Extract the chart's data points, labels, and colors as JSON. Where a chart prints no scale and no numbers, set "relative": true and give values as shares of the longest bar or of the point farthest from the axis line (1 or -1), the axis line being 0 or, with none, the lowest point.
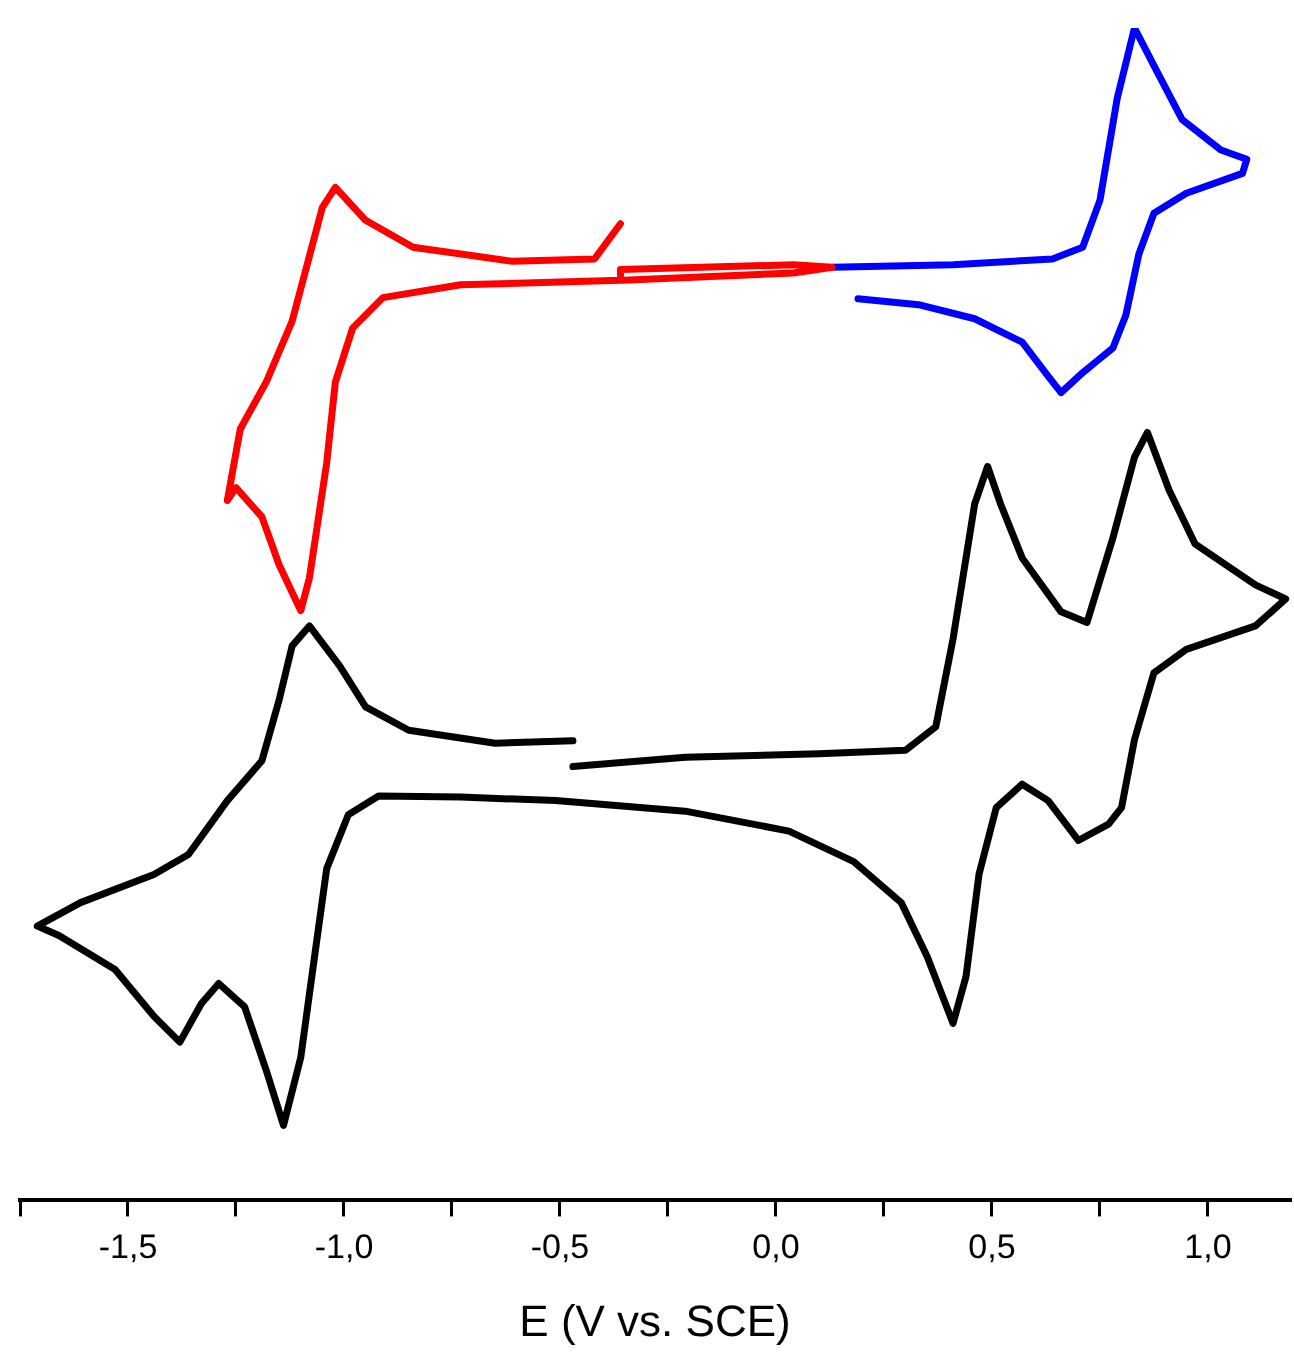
{
  "chart_data": {
    "type": "line",
    "xlabel": "E (V vs. SCE)",
    "relative": true,
    "legend": false,
    "grid": false,
    "marker": "none",
    "line_style": "solid",
    "xlim": [
      -1.75,
      1.19
    ],
    "xticks": [
      {
        "value": -1.75,
        "label": null
      },
      {
        "value": -1.5,
        "label": "-1,5"
      },
      {
        "value": -1.25,
        "label": null
      },
      {
        "value": -1.0,
        "label": "-1,0"
      },
      {
        "value": -0.75,
        "label": null
      },
      {
        "value": -0.5,
        "label": "-0,5"
      },
      {
        "value": -0.25,
        "label": null
      },
      {
        "value": 0,
        "label": "0,0"
      },
      {
        "value": 0.25,
        "label": null
      },
      {
        "value": 0.5,
        "label": "0,5"
      },
      {
        "value": 0.75,
        "label": null
      },
      {
        "value": 1.0,
        "label": "1,0"
      }
    ],
    "series": [
      {
        "color": "#ff0000",
        "x": [
          -0.36,
          -0.42,
          -0.61,
          -0.84,
          -0.95,
          -1.02,
          -1.05,
          -1.12,
          -1.18,
          -1.24,
          -1.27,
          -1.25,
          -1.19,
          -1.15,
          -1.1,
          -1.08,
          -1.04,
          -1.02,
          -0.98,
          -0.91,
          -0.73,
          -0.34,
          0.04,
          0.13,
          0.04,
          -0.36,
          -0.36
        ],
        "values": [
          0.833,
          0.803,
          0.801,
          0.813,
          0.836,
          0.864,
          0.847,
          0.75,
          0.698,
          0.658,
          0.597,
          0.608,
          0.583,
          0.542,
          0.503,
          0.531,
          0.629,
          0.698,
          0.744,
          0.77,
          0.781,
          0.785,
          0.791,
          0.796,
          0.798,
          0.794,
          0.789
        ]
      },
      {
        "color": "#0000ff",
        "x": [
          0.13,
          0.41,
          0.64,
          0.71,
          0.75,
          0.79,
          0.83,
          0.875,
          0.94,
          1.03,
          1.09,
          1.08,
          0.95,
          0.875,
          0.84,
          0.81,
          0.78,
          0.74,
          0.71,
          0.66,
          0.63,
          0.57,
          0.46,
          0.33,
          0.19
        ],
        "values": [
          0.796,
          0.798,
          0.803,
          0.813,
          0.853,
          0.94,
          1.0,
          0.968,
          0.922,
          0.896,
          0.888,
          0.876,
          0.859,
          0.842,
          0.807,
          0.755,
          0.727,
          0.715,
          0.706,
          0.689,
          0.703,
          0.732,
          0.752,
          0.764,
          0.769
        ]
      },
      {
        "color": "#000000",
        "x": [
          -0.47,
          -0.21,
          0.1,
          0.3,
          0.37,
          0.41,
          0.46,
          0.49,
          0.52,
          0.57,
          0.66,
          0.72,
          0.78,
          0.83,
          0.86,
          0.91,
          0.97,
          1.11,
          1.18,
          1.11,
          0.95,
          0.875,
          0.83,
          0.8,
          0.77,
          0.7,
          0.63,
          0.57,
          0.51,
          0.47,
          0.44,
          0.41,
          0.35,
          0.29,
          0.18,
          0.03,
          -0.21,
          -0.51,
          -0.73,
          -0.92,
          -0.99,
          -1.04,
          -1.07,
          -1.1,
          -1.14,
          -1.18,
          -1.23,
          -1.29,
          -1.33,
          -1.38,
          -1.44,
          -1.53,
          -1.66,
          -1.71,
          -1.61,
          -1.44,
          -1.36,
          -1.27,
          -1.19,
          -1.15,
          -1.12,
          -1.08,
          -1.01,
          -0.95,
          -0.85,
          -0.65,
          -0.47
        ],
        "values": [
          0.37,
          0.378,
          0.381,
          0.384,
          0.404,
          0.479,
          0.594,
          0.626,
          0.594,
          0.548,
          0.502,
          0.493,
          0.565,
          0.634,
          0.655,
          0.606,
          0.56,
          0.525,
          0.513,
          0.49,
          0.47,
          0.45,
          0.393,
          0.335,
          0.321,
          0.307,
          0.341,
          0.355,
          0.335,
          0.278,
          0.191,
          0.151,
          0.208,
          0.254,
          0.289,
          0.315,
          0.332,
          0.341,
          0.344,
          0.345,
          0.329,
          0.283,
          0.203,
          0.122,
          0.064,
          0.111,
          0.165,
          0.185,
          0.168,
          0.135,
          0.157,
          0.197,
          0.226,
          0.234,
          0.254,
          0.278,
          0.295,
          0.341,
          0.375,
          0.427,
          0.473,
          0.49,
          0.456,
          0.421,
          0.401,
          0.39,
          0.392
        ]
      }
    ]
  }
}
